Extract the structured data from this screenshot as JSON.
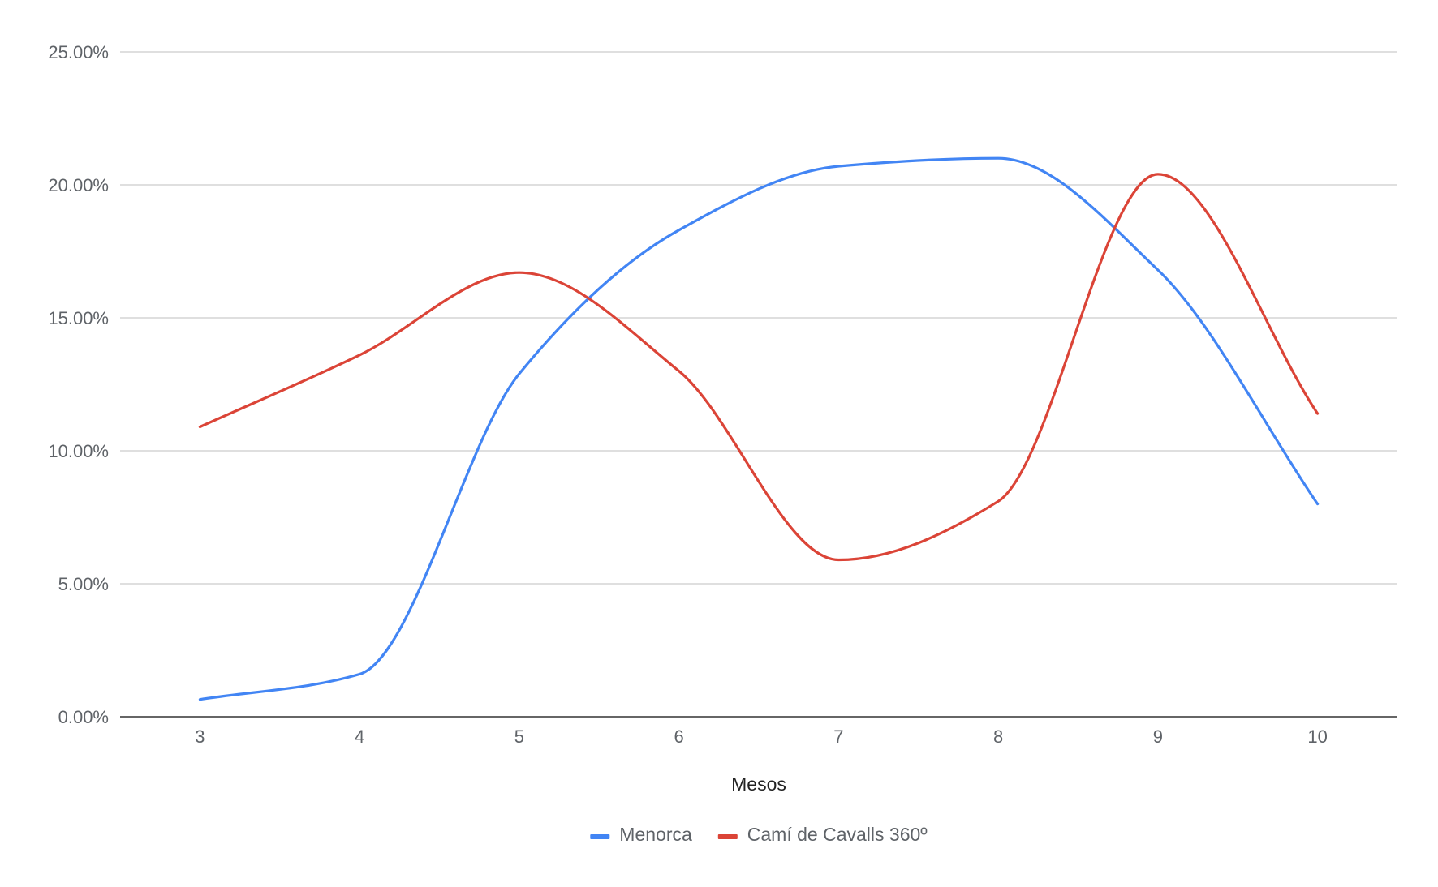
{
  "chart_data": {
    "type": "line",
    "smooth": true,
    "x": [
      3,
      4,
      5,
      6,
      7,
      8,
      9,
      10
    ],
    "series": [
      {
        "name": "Menorca",
        "color": "#4285f4",
        "values": [
          0.65,
          1.6,
          12.9,
          18.3,
          20.7,
          21.0,
          16.8,
          8.0
        ]
      },
      {
        "name": "Camí de Cavalls 360º",
        "color": "#db4437",
        "values": [
          10.9,
          13.6,
          16.7,
          13.0,
          5.9,
          8.1,
          20.4,
          11.4
        ]
      }
    ],
    "xlabel": "Mesos",
    "ylabel": "",
    "ylim": [
      0,
      25
    ],
    "yticks": [
      "0.00%",
      "5.00%",
      "10.00%",
      "15.00%",
      "20.00%",
      "25.00%"
    ],
    "xticks": [
      "3",
      "4",
      "5",
      "6",
      "7",
      "8",
      "9",
      "10"
    ],
    "grid": true,
    "legend": "bottom",
    "colors": {
      "grid": "#cccccc",
      "axis": "#333333",
      "text": "#5f6368"
    }
  }
}
